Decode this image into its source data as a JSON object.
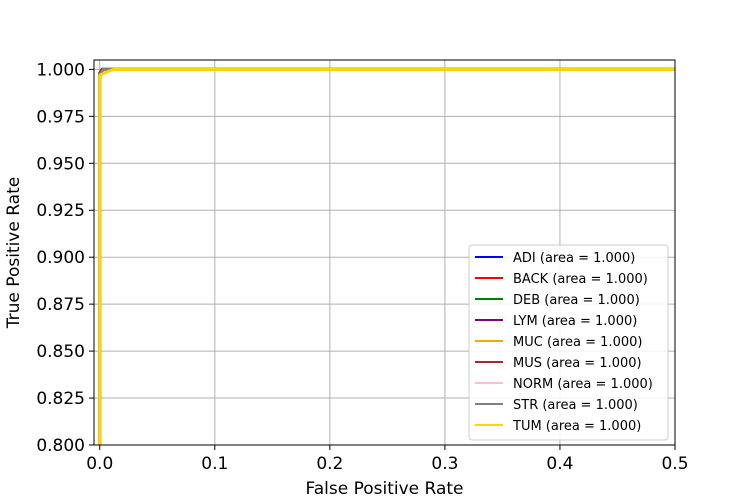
{
  "chart_data": {
    "type": "line",
    "title": "",
    "xlabel": "False Positive Rate",
    "ylabel": "True Positive Rate",
    "xlim": [
      -0.005,
      0.5
    ],
    "ylim": [
      0.8,
      1.005
    ],
    "xticks": [
      0.0,
      0.1,
      0.2,
      0.3,
      0.4,
      0.5
    ],
    "xtick_labels": [
      "0.0",
      "0.1",
      "0.2",
      "0.3",
      "0.4",
      "0.5"
    ],
    "yticks": [
      0.8,
      0.825,
      0.85,
      0.875,
      0.9,
      0.925,
      0.95,
      0.975,
      1.0
    ],
    "ytick_labels": [
      "0.800",
      "0.825",
      "0.850",
      "0.875",
      "0.900",
      "0.925",
      "0.950",
      "0.975",
      "1.000"
    ],
    "grid": true,
    "legend_position": "lower-right",
    "series": [
      {
        "name": "ADI (area = 1.000)",
        "color": "#0000ff",
        "x": [
          0,
          0,
          0.002,
          0.5
        ],
        "y": [
          0.8,
          0.997,
          1.0,
          1.0
        ]
      },
      {
        "name": "BACK (area = 1.000)",
        "color": "#ff0000",
        "x": [
          0,
          0,
          0.002,
          0.5
        ],
        "y": [
          0.8,
          0.998,
          1.0,
          1.0
        ]
      },
      {
        "name": "DEB (area = 1.000)",
        "color": "#008000",
        "x": [
          0,
          0,
          0.003,
          0.5
        ],
        "y": [
          0.8,
          0.997,
          1.0,
          1.0
        ]
      },
      {
        "name": "LYM (area = 1.000)",
        "color": "#800080",
        "x": [
          0,
          0,
          0.002,
          0.5
        ],
        "y": [
          0.8,
          0.998,
          1.0,
          1.0
        ]
      },
      {
        "name": "MUC (area = 1.000)",
        "color": "#ffa500",
        "x": [
          0,
          0,
          0.003,
          0.5
        ],
        "y": [
          0.8,
          0.996,
          1.0,
          1.0
        ]
      },
      {
        "name": "MUS (area = 1.000)",
        "color": "#a52a2a",
        "x": [
          0,
          0,
          0.002,
          0.5
        ],
        "y": [
          0.8,
          0.997,
          1.0,
          1.0
        ]
      },
      {
        "name": "NORM (area = 1.000)",
        "color": "#ffc0cb",
        "x": [
          0,
          0,
          0.004,
          0.5
        ],
        "y": [
          0.8,
          0.996,
          1.0,
          1.0
        ]
      },
      {
        "name": "STR (area = 1.000)",
        "color": "#808080",
        "x": [
          0,
          0,
          0.003,
          0.5
        ],
        "y": [
          0.8,
          0.997,
          1.0,
          1.0
        ]
      },
      {
        "name": "TUM (area = 1.000)",
        "color": "#ffd700",
        "x": [
          0,
          0,
          0.012,
          0.5
        ],
        "y": [
          0.8,
          0.997,
          1.0,
          1.0
        ]
      }
    ]
  }
}
